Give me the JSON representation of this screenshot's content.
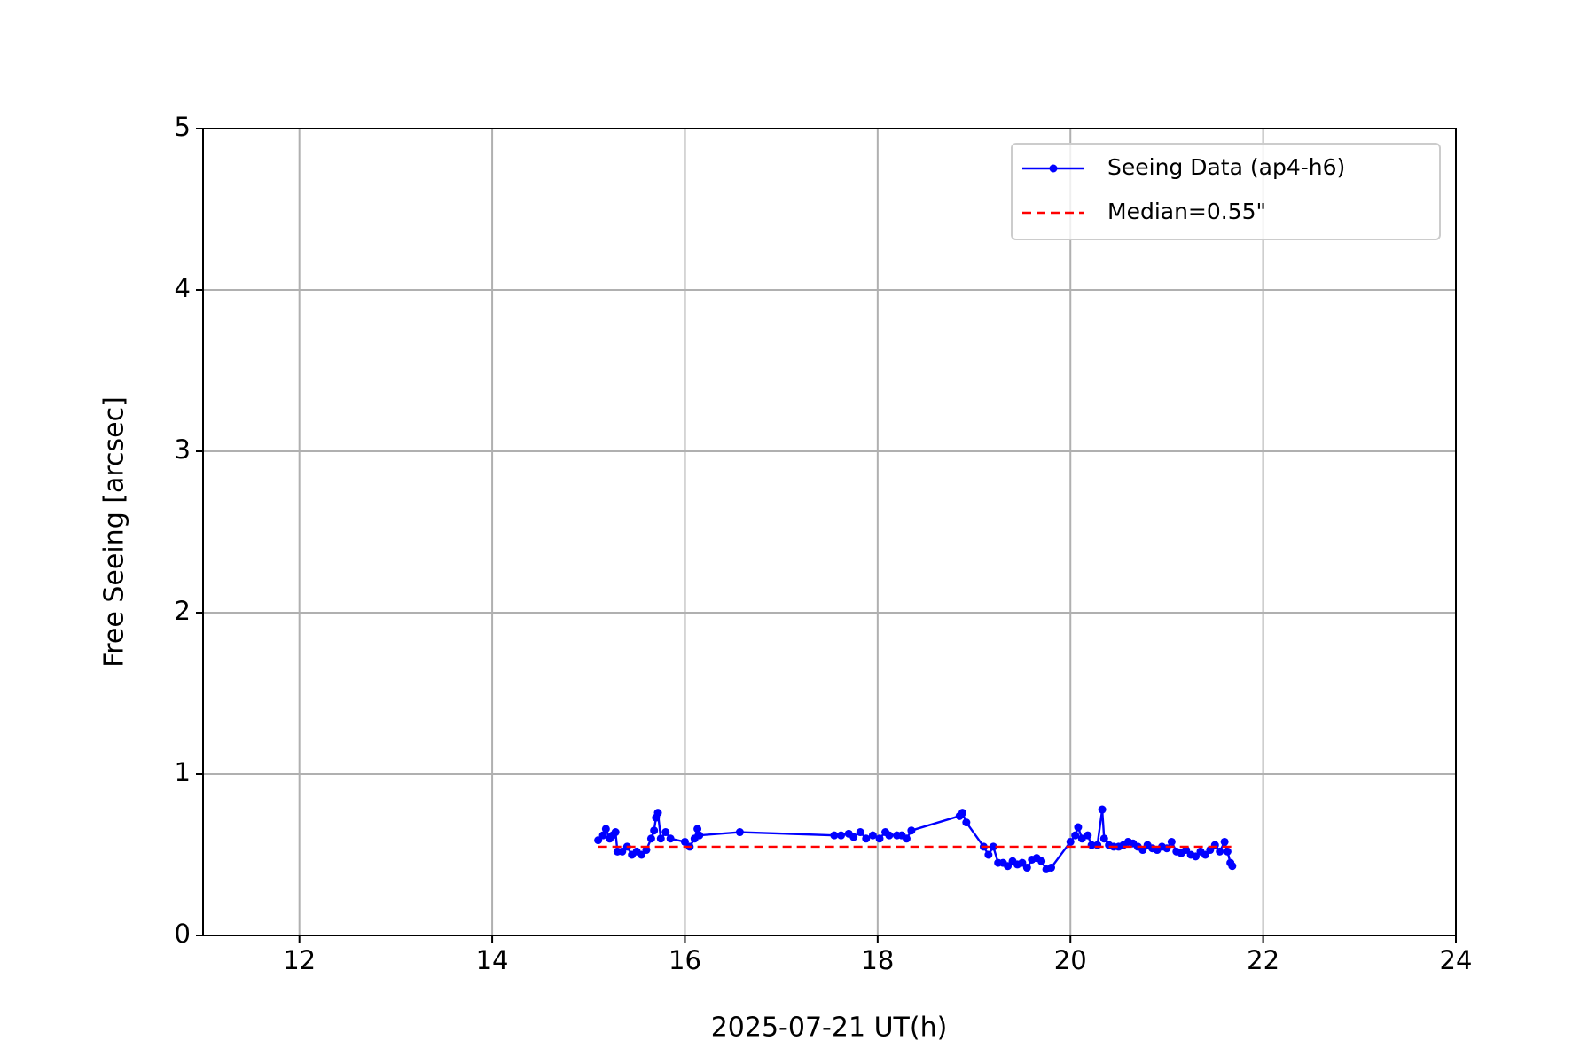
{
  "chart_data": {
    "type": "line",
    "xlabel": "2025-07-21 UT(h)",
    "ylabel": "Free Seeing [arcsec]",
    "xlim": [
      11,
      24
    ],
    "xticks": [
      12,
      14,
      16,
      18,
      20,
      22,
      24
    ],
    "ylim": [
      0,
      5
    ],
    "yticks": [
      0,
      1,
      2,
      3,
      4,
      5
    ],
    "grid": true,
    "legend": "upper right",
    "series": [
      {
        "name": "Seeing Data (ap4-h6)",
        "color": "#0000ff",
        "linestyle": "solid",
        "marker": "o",
        "x": [
          15.1,
          15.15,
          15.18,
          15.22,
          15.25,
          15.28,
          15.3,
          15.35,
          15.4,
          15.45,
          15.5,
          15.55,
          15.6,
          15.65,
          15.68,
          15.7,
          15.72,
          15.75,
          15.8,
          15.85,
          16.0,
          16.05,
          16.1,
          16.13,
          16.15,
          16.57,
          17.55,
          17.62,
          17.7,
          17.75,
          17.82,
          17.88,
          17.95,
          18.02,
          18.08,
          18.12,
          18.2,
          18.25,
          18.3,
          18.35,
          18.85,
          18.88,
          18.92,
          19.1,
          19.15,
          19.2,
          19.25,
          19.3,
          19.35,
          19.4,
          19.45,
          19.5,
          19.55,
          19.6,
          19.65,
          19.7,
          19.75,
          19.8,
          20.0,
          20.05,
          20.08,
          20.12,
          20.18,
          20.22,
          20.28,
          20.33,
          20.35,
          20.4,
          20.45,
          20.5,
          20.55,
          20.6,
          20.65,
          20.7,
          20.75,
          20.8,
          20.85,
          20.9,
          20.95,
          21.0,
          21.05,
          21.1,
          21.15,
          21.2,
          21.25,
          21.3,
          21.35,
          21.4,
          21.45,
          21.5,
          21.55,
          21.6,
          21.63,
          21.66,
          21.68
        ],
        "values": [
          0.59,
          0.62,
          0.66,
          0.6,
          0.62,
          0.64,
          0.52,
          0.52,
          0.55,
          0.5,
          0.52,
          0.5,
          0.53,
          0.6,
          0.65,
          0.73,
          0.76,
          0.6,
          0.64,
          0.6,
          0.58,
          0.55,
          0.6,
          0.66,
          0.62,
          0.64,
          0.62,
          0.62,
          0.63,
          0.61,
          0.64,
          0.6,
          0.62,
          0.6,
          0.64,
          0.62,
          0.62,
          0.62,
          0.6,
          0.65,
          0.74,
          0.76,
          0.7,
          0.55,
          0.5,
          0.55,
          0.45,
          0.45,
          0.43,
          0.46,
          0.44,
          0.45,
          0.42,
          0.47,
          0.48,
          0.46,
          0.41,
          0.42,
          0.58,
          0.62,
          0.67,
          0.6,
          0.62,
          0.56,
          0.56,
          0.78,
          0.6,
          0.56,
          0.55,
          0.55,
          0.56,
          0.58,
          0.57,
          0.55,
          0.53,
          0.56,
          0.54,
          0.53,
          0.55,
          0.54,
          0.58,
          0.52,
          0.51,
          0.53,
          0.5,
          0.49,
          0.52,
          0.5,
          0.53,
          0.56,
          0.52,
          0.58,
          0.52,
          0.45,
          0.43
        ]
      },
      {
        "name": "Median=0.55\"",
        "color": "#ff0000",
        "linestyle": "dashed",
        "x": [
          15.1,
          21.68
        ],
        "values": [
          0.55,
          0.55
        ]
      }
    ]
  }
}
